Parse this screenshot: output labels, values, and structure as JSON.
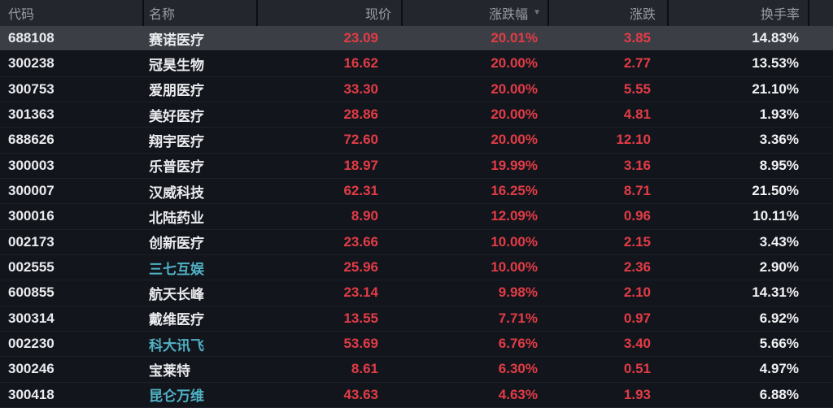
{
  "colors": {
    "background": "#13151c",
    "header_background": "#24262d",
    "header_text": "#989ca4",
    "selected_row_background": "#3b3e45",
    "up_red": "#e23c46",
    "neutral_white": "#e9ebee",
    "linked_name_teal": "#4fb2c4"
  },
  "table": {
    "sort_icon": "▼",
    "sorted_column": "涨跌幅",
    "sort_direction": "desc",
    "columns": [
      {
        "key": "code",
        "label": "代码",
        "align": "left"
      },
      {
        "key": "name",
        "label": "名称",
        "align": "left"
      },
      {
        "key": "price",
        "label": "现价",
        "align": "right"
      },
      {
        "key": "change_pct",
        "label": "涨跌幅",
        "align": "right"
      },
      {
        "key": "change",
        "label": "涨跌",
        "align": "right"
      },
      {
        "key": "turnover",
        "label": "换手率",
        "align": "right"
      }
    ],
    "rows": [
      {
        "code": "688108",
        "name": "赛诺医疗",
        "price": "23.09",
        "change_pct": "20.01%",
        "change": "3.85",
        "turnover": "14.83%",
        "selected": true,
        "name_teal": false
      },
      {
        "code": "300238",
        "name": "冠昊生物",
        "price": "16.62",
        "change_pct": "20.00%",
        "change": "2.77",
        "turnover": "13.53%",
        "selected": false,
        "name_teal": false
      },
      {
        "code": "300753",
        "name": "爱朋医疗",
        "price": "33.30",
        "change_pct": "20.00%",
        "change": "5.55",
        "turnover": "21.10%",
        "selected": false,
        "name_teal": false
      },
      {
        "code": "301363",
        "name": "美好医疗",
        "price": "28.86",
        "change_pct": "20.00%",
        "change": "4.81",
        "turnover": "1.93%",
        "selected": false,
        "name_teal": false
      },
      {
        "code": "688626",
        "name": "翔宇医疗",
        "price": "72.60",
        "change_pct": "20.00%",
        "change": "12.10",
        "turnover": "3.36%",
        "selected": false,
        "name_teal": false
      },
      {
        "code": "300003",
        "name": "乐普医疗",
        "price": "18.97",
        "change_pct": "19.99%",
        "change": "3.16",
        "turnover": "8.95%",
        "selected": false,
        "name_teal": false
      },
      {
        "code": "300007",
        "name": "汉威科技",
        "price": "62.31",
        "change_pct": "16.25%",
        "change": "8.71",
        "turnover": "21.50%",
        "selected": false,
        "name_teal": false
      },
      {
        "code": "300016",
        "name": "北陆药业",
        "price": "8.90",
        "change_pct": "12.09%",
        "change": "0.96",
        "turnover": "10.11%",
        "selected": false,
        "name_teal": false
      },
      {
        "code": "002173",
        "name": "创新医疗",
        "price": "23.66",
        "change_pct": "10.00%",
        "change": "2.15",
        "turnover": "3.43%",
        "selected": false,
        "name_teal": false
      },
      {
        "code": "002555",
        "name": "三七互娱",
        "price": "25.96",
        "change_pct": "10.00%",
        "change": "2.36",
        "turnover": "2.90%",
        "selected": false,
        "name_teal": true
      },
      {
        "code": "600855",
        "name": "航天长峰",
        "price": "23.14",
        "change_pct": "9.98%",
        "change": "2.10",
        "turnover": "14.31%",
        "selected": false,
        "name_teal": false
      },
      {
        "code": "300314",
        "name": "戴维医疗",
        "price": "13.55",
        "change_pct": "7.71%",
        "change": "0.97",
        "turnover": "6.92%",
        "selected": false,
        "name_teal": false
      },
      {
        "code": "002230",
        "name": "科大讯飞",
        "price": "53.69",
        "change_pct": "6.76%",
        "change": "3.40",
        "turnover": "5.66%",
        "selected": false,
        "name_teal": true
      },
      {
        "code": "300246",
        "name": "宝莱特",
        "price": "8.61",
        "change_pct": "6.30%",
        "change": "0.51",
        "turnover": "4.97%",
        "selected": false,
        "name_teal": false
      },
      {
        "code": "300418",
        "name": "昆仑万维",
        "price": "43.63",
        "change_pct": "4.63%",
        "change": "1.93",
        "turnover": "6.88%",
        "selected": false,
        "name_teal": true
      }
    ]
  }
}
